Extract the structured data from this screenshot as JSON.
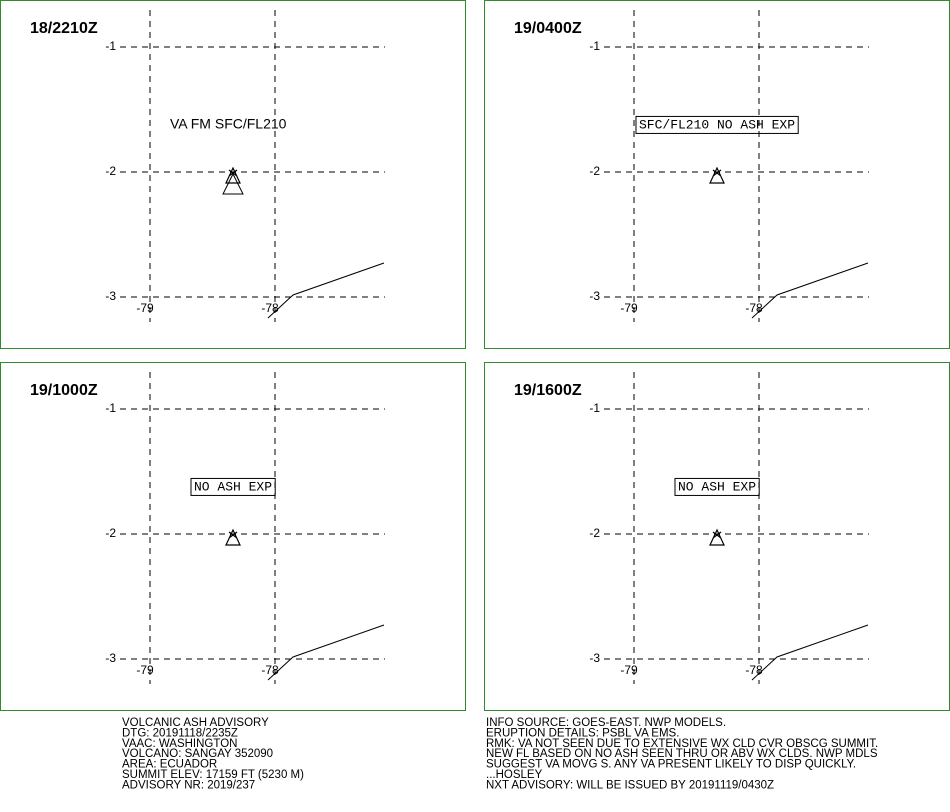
{
  "panels": [
    {
      "time": "18/2210Z",
      "annotation": "VA FM SFC/FL210",
      "boxed": false
    },
    {
      "time": "19/0400Z",
      "annotation": "SFC/FL210 NO ASH EXP",
      "boxed": true
    },
    {
      "time": "19/1000Z",
      "annotation": "NO ASH EXP",
      "boxed": true
    },
    {
      "time": "19/1600Z",
      "annotation": "NO ASH EXP",
      "boxed": true
    }
  ],
  "lat_ticks": [
    -1,
    -2,
    -3
  ],
  "lon_ticks": [
    -79,
    -78
  ],
  "advisory_left": [
    "VOLCANIC ASH ADVISORY",
    "DTG: 20191118/2235Z",
    "VAAC: WASHINGTON",
    "VOLCANO: SANGAY 352090",
    "AREA: ECUADOR",
    "SUMMIT ELEV: 17159 FT (5230 M)",
    "ADVISORY NR: 2019/237"
  ],
  "advisory_right": [
    "INFO SOURCE: GOES-EAST. NWP MODELS.",
    "ERUPTION DETAILS: PSBL VA EMS.",
    "RMK: VA NOT SEEN DUE TO EXTENSIVE WX CLD CVR OBSCG SUMMIT.",
    "NEW FL BASED ON NO ASH SEEN THRU OR ABV WX CLDS. NWP MDLS",
    "SUGGEST VA MOVG S. ANY VA PRESENT LIKELY TO DISP QUICKLY.",
    "...HOSLEY",
    "NXT ADVISORY: WILL BE ISSUED BY 20191119/0430Z"
  ]
}
